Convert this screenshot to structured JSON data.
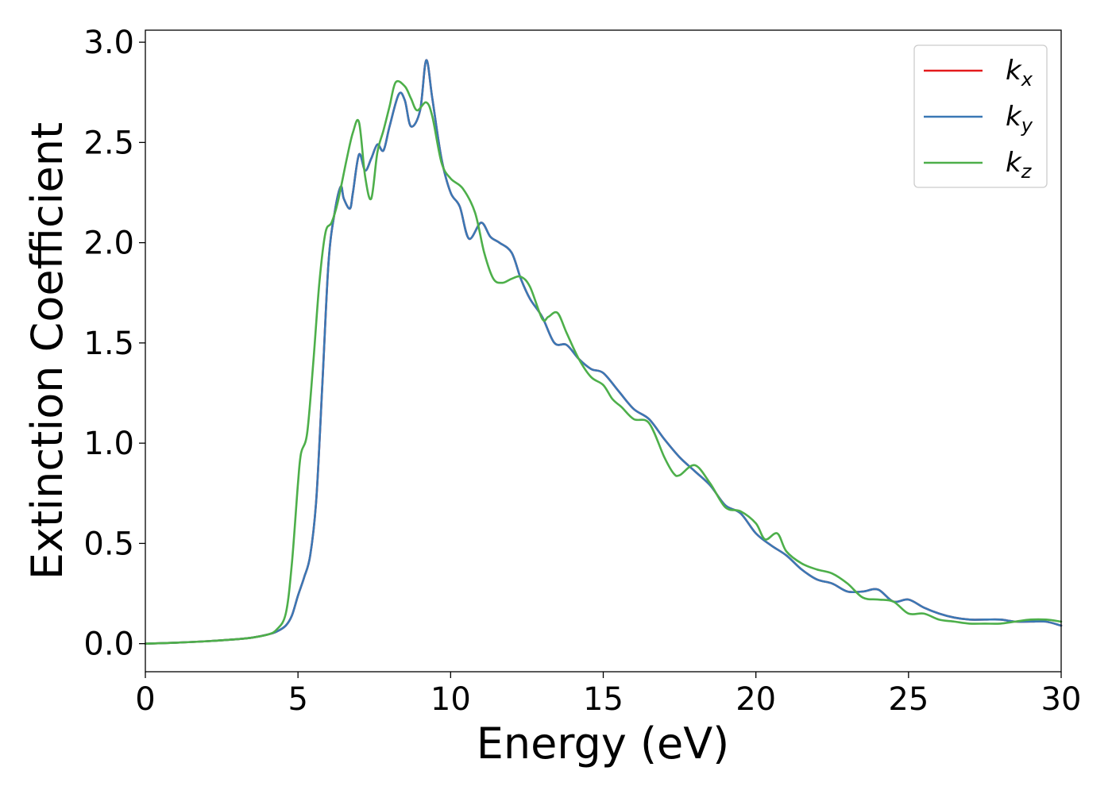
{
  "chart_data": {
    "type": "line",
    "title": "",
    "xlabel": "Energy (eV)",
    "ylabel": "Extinction Coefficient",
    "xlim": [
      0,
      30
    ],
    "ylim": [
      -0.14,
      3.06
    ],
    "xticks": [
      "0",
      "5",
      "10",
      "15",
      "20",
      "25",
      "30"
    ],
    "yticks": [
      "0.0",
      "0.5",
      "1.0",
      "1.5",
      "2.0",
      "2.5",
      "3.0"
    ],
    "grid": false,
    "legend_position": "top-right",
    "series": [
      {
        "name": "k_x",
        "label_main": "k",
        "label_sub": "x",
        "color": "#e41a1c",
        "x": [
          0,
          1,
          2,
          3,
          3.5,
          4,
          4.3,
          4.6,
          4.8,
          5,
          5.2,
          5.4,
          5.6,
          5.8,
          6,
          6.2,
          6.4,
          6.5,
          6.7,
          6.8,
          7,
          7.2,
          7.4,
          7.6,
          7.8,
          8,
          8.3,
          8.5,
          8.7,
          9,
          9.2,
          9.4,
          9.7,
          10,
          10.3,
          10.6,
          11,
          11.3,
          11.6,
          12,
          12.3,
          12.6,
          13,
          13.4,
          13.8,
          14.2,
          14.6,
          15,
          15.5,
          16,
          16.5,
          17,
          17.5,
          18,
          18.5,
          19,
          19.5,
          20,
          20.5,
          21,
          21.5,
          22,
          22.5,
          23,
          23.5,
          24,
          24.5,
          25,
          25.5,
          26,
          26.5,
          27,
          27.5,
          28,
          28.5,
          29,
          29.5,
          30
        ],
        "y": [
          0,
          0.005,
          0.012,
          0.022,
          0.03,
          0.045,
          0.06,
          0.09,
          0.14,
          0.24,
          0.33,
          0.44,
          0.72,
          1.3,
          1.9,
          2.15,
          2.28,
          2.22,
          2.17,
          2.25,
          2.44,
          2.36,
          2.42,
          2.49,
          2.46,
          2.58,
          2.74,
          2.71,
          2.58,
          2.66,
          2.91,
          2.72,
          2.42,
          2.25,
          2.18,
          2.02,
          2.1,
          2.03,
          2,
          1.95,
          1.82,
          1.72,
          1.63,
          1.5,
          1.49,
          1.42,
          1.37,
          1.35,
          1.26,
          1.17,
          1.12,
          1.02,
          0.93,
          0.86,
          0.79,
          0.69,
          0.65,
          0.55,
          0.49,
          0.44,
          0.37,
          0.32,
          0.3,
          0.26,
          0.26,
          0.27,
          0.21,
          0.22,
          0.18,
          0.15,
          0.13,
          0.12,
          0.12,
          0.12,
          0.11,
          0.11,
          0.11,
          0.09
        ]
      },
      {
        "name": "k_y",
        "label_main": "k",
        "label_sub": "y",
        "color": "#3a78b5",
        "x": [
          0,
          1,
          2,
          3,
          3.5,
          4,
          4.3,
          4.6,
          4.8,
          5,
          5.2,
          5.4,
          5.6,
          5.8,
          6,
          6.2,
          6.4,
          6.5,
          6.7,
          6.8,
          7,
          7.2,
          7.4,
          7.6,
          7.8,
          8,
          8.3,
          8.5,
          8.7,
          9,
          9.2,
          9.4,
          9.7,
          10,
          10.3,
          10.6,
          11,
          11.3,
          11.6,
          12,
          12.3,
          12.6,
          13,
          13.4,
          13.8,
          14.2,
          14.6,
          15,
          15.5,
          16,
          16.5,
          17,
          17.5,
          18,
          18.5,
          19,
          19.5,
          20,
          20.5,
          21,
          21.5,
          22,
          22.5,
          23,
          23.5,
          24,
          24.5,
          25,
          25.5,
          26,
          26.5,
          27,
          27.5,
          28,
          28.5,
          29,
          29.5,
          30
        ],
        "y": [
          0,
          0.005,
          0.012,
          0.022,
          0.03,
          0.045,
          0.06,
          0.09,
          0.14,
          0.24,
          0.33,
          0.44,
          0.72,
          1.3,
          1.9,
          2.15,
          2.28,
          2.22,
          2.17,
          2.25,
          2.44,
          2.36,
          2.42,
          2.49,
          2.46,
          2.58,
          2.74,
          2.71,
          2.58,
          2.66,
          2.91,
          2.72,
          2.42,
          2.25,
          2.18,
          2.02,
          2.1,
          2.03,
          2,
          1.95,
          1.82,
          1.72,
          1.63,
          1.5,
          1.49,
          1.42,
          1.37,
          1.35,
          1.26,
          1.17,
          1.12,
          1.02,
          0.93,
          0.86,
          0.79,
          0.69,
          0.65,
          0.55,
          0.49,
          0.44,
          0.37,
          0.32,
          0.3,
          0.26,
          0.26,
          0.27,
          0.21,
          0.22,
          0.18,
          0.15,
          0.13,
          0.12,
          0.12,
          0.12,
          0.11,
          0.11,
          0.11,
          0.09
        ]
      },
      {
        "name": "k_z",
        "label_main": "k",
        "label_sub": "z",
        "color": "#4daf4a",
        "x": [
          0,
          1,
          2,
          3,
          3.5,
          4,
          4.3,
          4.6,
          4.8,
          5,
          5.1,
          5.3,
          5.5,
          5.7,
          5.9,
          6.1,
          6.3,
          6.6,
          6.8,
          7,
          7.2,
          7.4,
          7.6,
          7.8,
          8,
          8.2,
          8.5,
          8.7,
          8.9,
          9.2,
          9.4,
          9.7,
          10,
          10.4,
          10.8,
          11.1,
          11.4,
          11.7,
          12,
          12.3,
          12.6,
          13,
          13.2,
          13.5,
          13.8,
          14.2,
          14.6,
          15,
          15.3,
          15.6,
          16,
          16.5,
          17,
          17.3,
          17.5,
          18,
          18.5,
          19,
          19.5,
          20,
          20.3,
          20.7,
          21,
          21.5,
          22,
          22.5,
          23,
          23.5,
          24,
          24.5,
          25,
          25.5,
          26,
          26.5,
          27,
          27.5,
          28,
          28.5,
          29,
          29.5,
          30
        ],
        "y": [
          0,
          0.005,
          0.012,
          0.022,
          0.03,
          0.045,
          0.07,
          0.15,
          0.4,
          0.8,
          0.95,
          1.05,
          1.4,
          1.8,
          2.05,
          2.1,
          2.2,
          2.42,
          2.55,
          2.6,
          2.33,
          2.22,
          2.45,
          2.56,
          2.68,
          2.8,
          2.78,
          2.72,
          2.66,
          2.7,
          2.63,
          2.4,
          2.32,
          2.27,
          2.15,
          1.95,
          1.82,
          1.8,
          1.82,
          1.83,
          1.78,
          1.62,
          1.63,
          1.65,
          1.55,
          1.42,
          1.33,
          1.29,
          1.22,
          1.18,
          1.12,
          1.1,
          0.93,
          0.85,
          0.84,
          0.89,
          0.8,
          0.68,
          0.66,
          0.6,
          0.52,
          0.55,
          0.46,
          0.4,
          0.37,
          0.35,
          0.3,
          0.23,
          0.22,
          0.21,
          0.15,
          0.15,
          0.12,
          0.11,
          0.1,
          0.1,
          0.1,
          0.11,
          0.12,
          0.12,
          0.11
        ]
      }
    ]
  }
}
